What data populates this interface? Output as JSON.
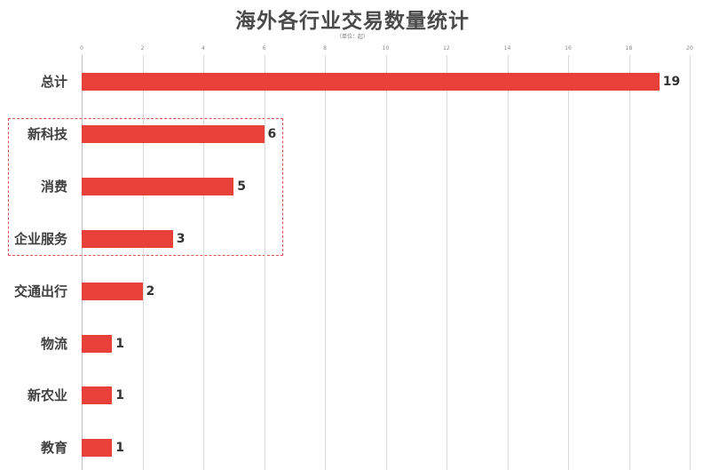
{
  "chart_data": {
    "type": "bar",
    "orientation": "horizontal",
    "title": "海外各行业交易数量统计",
    "subtitle": "（单位：起）",
    "xlabel": "",
    "ylabel": "",
    "categories": [
      "总计",
      "新科技",
      "消费",
      "企业服务",
      "交通出行",
      "物流",
      "新农业",
      "教育"
    ],
    "values": [
      19,
      6,
      5,
      3,
      2,
      1,
      1,
      1
    ],
    "xlim": [
      0,
      20
    ],
    "x_ticks": [
      "0",
      "2",
      "4",
      "6",
      "8",
      "10",
      "12",
      "14",
      "16",
      "18",
      "20"
    ],
    "x_axis_position": "top",
    "grid": true,
    "legend": null,
    "data_labels": true,
    "bar_color": "#e8413a",
    "annotations": [
      {
        "type": "dashed-box",
        "covers": [
          "新科技",
          "消费",
          "企业服务"
        ],
        "color": "#d9534f"
      }
    ]
  },
  "labels": {
    "title": "海外各行业交易数量统计",
    "unit": "（单位：起）"
  }
}
